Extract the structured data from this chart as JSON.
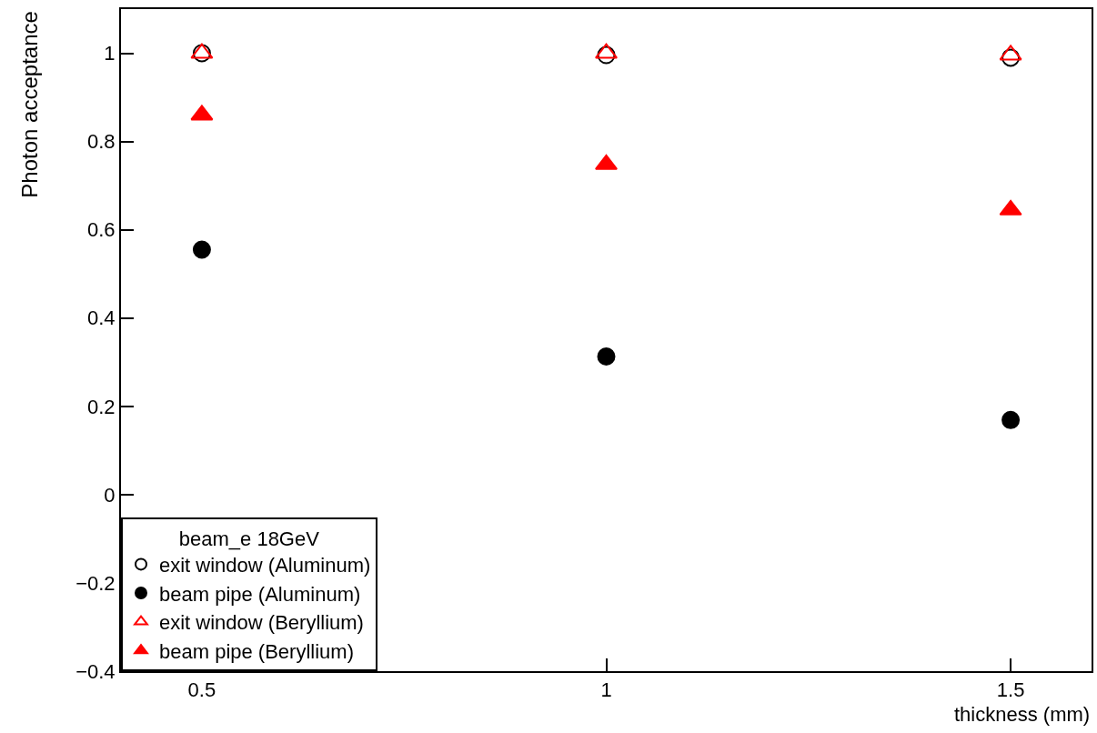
{
  "chart_data": {
    "type": "scatter",
    "xlabel": "thickness (mm)",
    "ylabel": "Photon acceptance",
    "legend_title": "beam_e 18GeV",
    "x": [
      0.5,
      1,
      1.5
    ],
    "series": [
      {
        "name": "exit window (Aluminum)",
        "color": "#000000",
        "marker": "circle-open",
        "values": [
          1.0,
          0.996,
          0.99
        ]
      },
      {
        "name": "beam pipe (Aluminum)",
        "color": "#000000",
        "marker": "circle",
        "values": [
          0.555,
          0.313,
          0.169
        ]
      },
      {
        "name": "exit window (Beryllium)",
        "color": "#ff0000",
        "marker": "triangle-open",
        "values": [
          1.0,
          1.0,
          0.996
        ]
      },
      {
        "name": "beam pipe (Beryllium)",
        "color": "#ff0000",
        "marker": "triangle",
        "values": [
          0.86,
          0.748,
          0.645
        ]
      }
    ],
    "xlim": [
      0.4,
      1.6
    ],
    "xticks": [
      0.5,
      1,
      1.5
    ],
    "ylim": [
      -0.4,
      1.1
    ],
    "yticks": [
      {
        "value": -0.4,
        "label": "−0.4"
      },
      {
        "value": -0.2,
        "label": "−0.2"
      },
      0,
      0.2,
      0.4,
      0.6,
      0.8,
      1
    ],
    "legend": "bottom left"
  }
}
